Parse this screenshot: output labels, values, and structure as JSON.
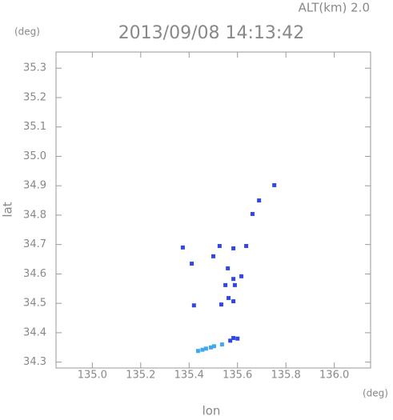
{
  "chart_data": {
    "type": "scatter",
    "title": "2013/09/08 14:13:42",
    "altitude_label": "ALT(km) 2.0",
    "y_unit": "(deg)",
    "x_unit": "(deg)",
    "xlabel": "lon",
    "ylabel": "lat",
    "xlim": [
      134.85,
      136.15
    ],
    "ylim": [
      34.28,
      35.355
    ],
    "xticks": [
      {
        "value": 135.0,
        "label": "135.0"
      },
      135.2,
      135.4,
      135.6,
      135.8,
      {
        "value": 136.0,
        "label": "136.0"
      }
    ],
    "yticks": [
      34.3,
      34.4,
      34.5,
      34.6,
      34.7,
      34.8,
      34.9,
      {
        "value": 35.0,
        "label": "35.0"
      },
      35.1,
      35.2,
      35.3
    ],
    "series": [
      {
        "color": "#3048e8",
        "x": [
          135.752,
          135.689,
          135.662,
          135.374,
          135.526,
          135.636,
          135.583,
          135.411,
          135.5,
          135.56,
          135.583,
          135.55,
          135.589,
          135.616,
          135.42,
          135.533,
          135.563,
          135.583,
          135.57,
          135.583,
          135.6
        ],
        "y": [
          34.902,
          34.85,
          34.804,
          34.69,
          34.695,
          34.695,
          34.687,
          34.635,
          34.66,
          34.619,
          34.583,
          34.562,
          34.562,
          34.592,
          34.493,
          34.496,
          34.518,
          34.507,
          34.373,
          34.382,
          34.38
        ]
      },
      {
        "color": "#40a8f0",
        "x": [
          135.437,
          135.47,
          135.503,
          135.536,
          135.455,
          135.49
        ],
        "y": [
          34.338,
          34.346,
          34.354,
          34.36,
          34.342,
          34.35
        ]
      }
    ]
  }
}
